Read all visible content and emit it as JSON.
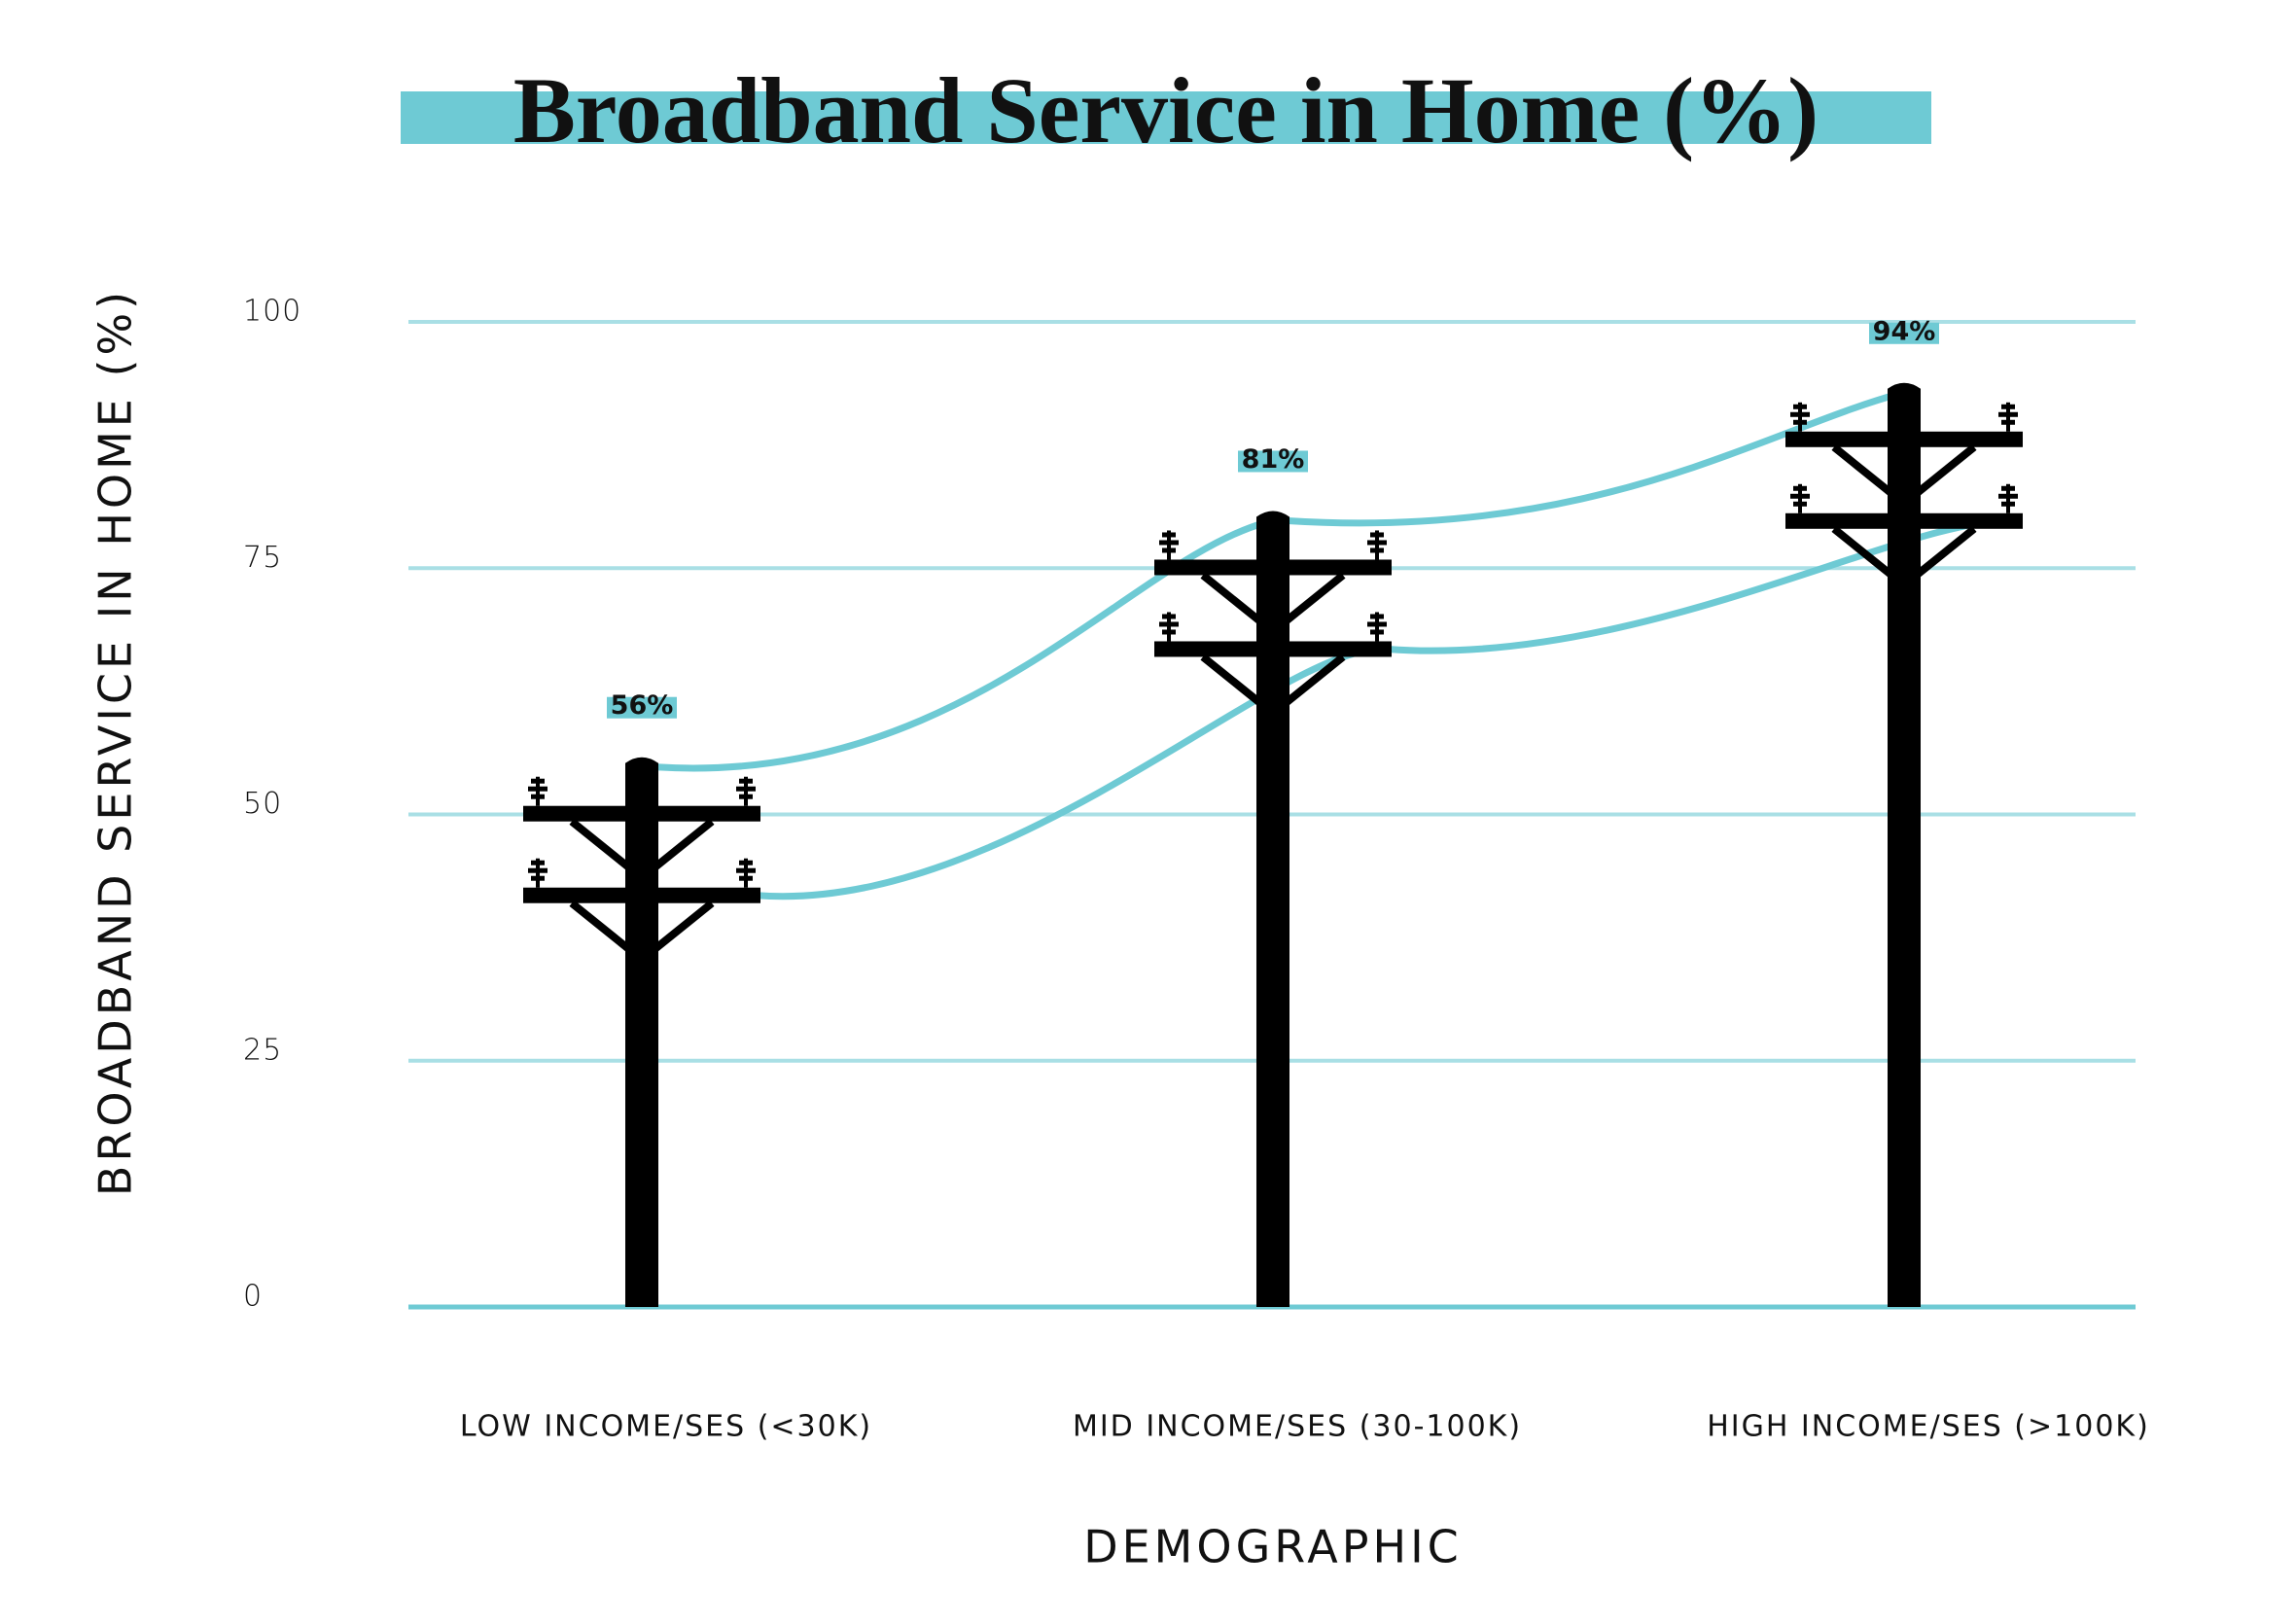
{
  "chart_data": {
    "type": "pole",
    "title": "Broadband Service in Home (%)",
    "y_label": "BROADBAND SERVICE IN HOME (%)",
    "x_label": "DEMOGRAPHIC",
    "categories": [
      "LOW INCOME/SES (<30K)",
      "MID INCOME/SES (30-100K)",
      "HIGH INCOME/SES (>100K)"
    ],
    "values": [
      56,
      81,
      94
    ],
    "value_labels": [
      "56%",
      "81%",
      "94%"
    ],
    "color": "#000000",
    "accent": "#6ecad4",
    "ylim": [
      0,
      100
    ],
    "yticks": [
      0,
      25,
      50,
      75,
      100
    ],
    "grid": true
  }
}
